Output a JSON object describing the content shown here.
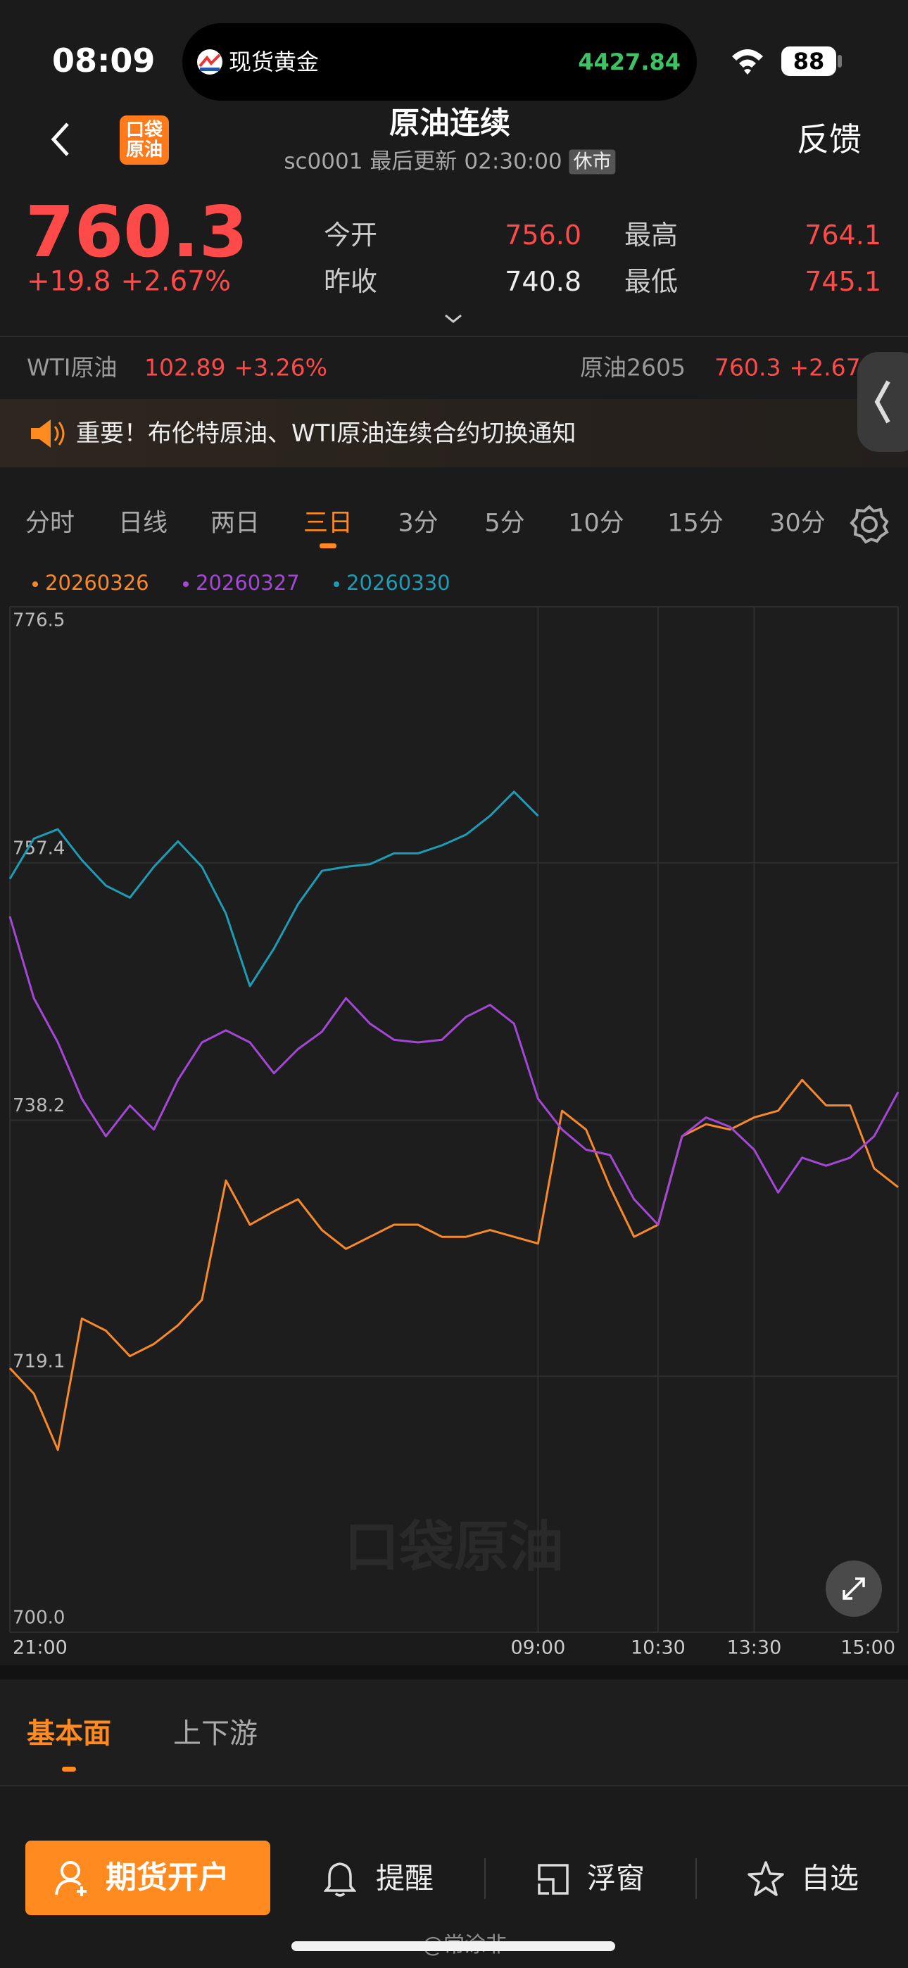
{
  "status_bar": {
    "time": "08:09",
    "ticker_name": "现货黄金",
    "ticker_price": "4427.84",
    "battery": "88"
  },
  "header": {
    "logo_top": "口袋",
    "logo_bottom": "原油",
    "title": "原油连续",
    "code": "sc0001",
    "updated_label": "最后更新",
    "update_time": "02:30:00",
    "status_badge": "休市",
    "feedback": "反馈"
  },
  "quote": {
    "price": "760.3",
    "change": "+19.8",
    "change_pct": "+2.67%",
    "stats": [
      {
        "label": "今开",
        "value": "756.0"
      },
      {
        "label": "最高",
        "value": "764.1"
      },
      {
        "label": "昨收",
        "value": "740.8"
      },
      {
        "label": "最低",
        "value": "745.1"
      }
    ]
  },
  "related": [
    {
      "name": "WTI原油",
      "price": "102.89",
      "change_pct": "+3.26%"
    },
    {
      "name": "原油2605",
      "price": "760.3",
      "change_pct": "+2.67%"
    }
  ],
  "notice": "重要！布伦特原油、WTI原油连续合约切换通知",
  "period_tabs": {
    "items": [
      "分时",
      "日线",
      "两日",
      "三日",
      "3分",
      "5分",
      "10分",
      "15分",
      "30分"
    ],
    "active": 3
  },
  "chart_data": {
    "type": "line",
    "x": [
      0,
      15,
      30,
      45,
      60,
      75,
      90,
      105,
      120,
      135,
      150,
      165,
      180,
      195,
      210,
      225,
      240,
      255,
      270,
      285,
      300,
      315,
      330,
      345,
      360,
      375,
      390,
      405,
      420,
      435,
      450,
      465,
      480,
      495,
      510,
      525,
      540,
      555
    ],
    "xlim": [
      0,
      555
    ],
    "xticks": [
      {
        "value": 0,
        "label": "21:00"
      },
      {
        "value": 330,
        "label": "09:00"
      },
      {
        "value": 405,
        "label": "10:30"
      },
      {
        "value": 465,
        "label": "13:30"
      },
      {
        "value": 555,
        "label": "15:00"
      }
    ],
    "ylim": [
      700,
      776.5
    ],
    "yticks": [
      776.5,
      757.4,
      738.2,
      719.1,
      {
        "value": 700,
        "label": "700.0"
      }
    ],
    "grid": true,
    "watermark": "口袋原油",
    "series": [
      {
        "name": "20260326",
        "color": "#f7892a",
        "values": [
          719.7,
          717.8,
          713.6,
          723.4,
          722.5,
          720.6,
          721.5,
          722.9,
          724.8,
          733.7,
          730.4,
          731.4,
          732.3,
          730.0,
          728.6,
          729.5,
          730.4,
          730.4,
          729.5,
          729.5,
          730.0,
          729.5,
          729.0,
          738.9,
          737.5,
          733.2,
          729.5,
          730.4,
          737.0,
          737.9,
          737.5,
          738.4,
          738.9,
          741.2,
          739.3,
          739.3,
          734.6,
          733.2
        ]
      },
      {
        "name": "20260327",
        "color": "#a447d6",
        "values": [
          753.4,
          747.3,
          744.0,
          739.8,
          737.0,
          739.3,
          737.5,
          741.2,
          744.0,
          744.9,
          744.0,
          741.7,
          743.5,
          744.8,
          747.3,
          745.4,
          744.2,
          744.0,
          744.2,
          745.9,
          746.8,
          745.4,
          739.8,
          737.5,
          736.0,
          735.6,
          732.3,
          730.4,
          737.0,
          738.4,
          737.7,
          736.0,
          732.8,
          735.4,
          734.8,
          735.4,
          737.0,
          740.3
        ]
      },
      {
        "name": "20260330",
        "color": "#1d9cb5",
        "values": [
          756.2,
          759.2,
          759.9,
          757.6,
          755.7,
          754.8,
          757.1,
          759.0,
          757.1,
          753.6,
          748.2,
          751.0,
          754.3,
          756.8,
          757.1,
          757.3,
          758.1,
          758.1,
          758.7,
          759.5,
          760.9,
          762.7,
          760.9,
          null,
          null,
          null,
          null,
          null,
          null,
          null,
          null,
          null,
          null,
          null,
          null,
          null,
          null,
          null
        ]
      }
    ]
  },
  "info_tabs": {
    "items": [
      "基本面",
      "上下游"
    ],
    "active": 0
  },
  "actions": {
    "primary": "期货开户",
    "items": [
      "提醒",
      "浮窗",
      "自选"
    ]
  },
  "watermark_user": "@常涂非"
}
